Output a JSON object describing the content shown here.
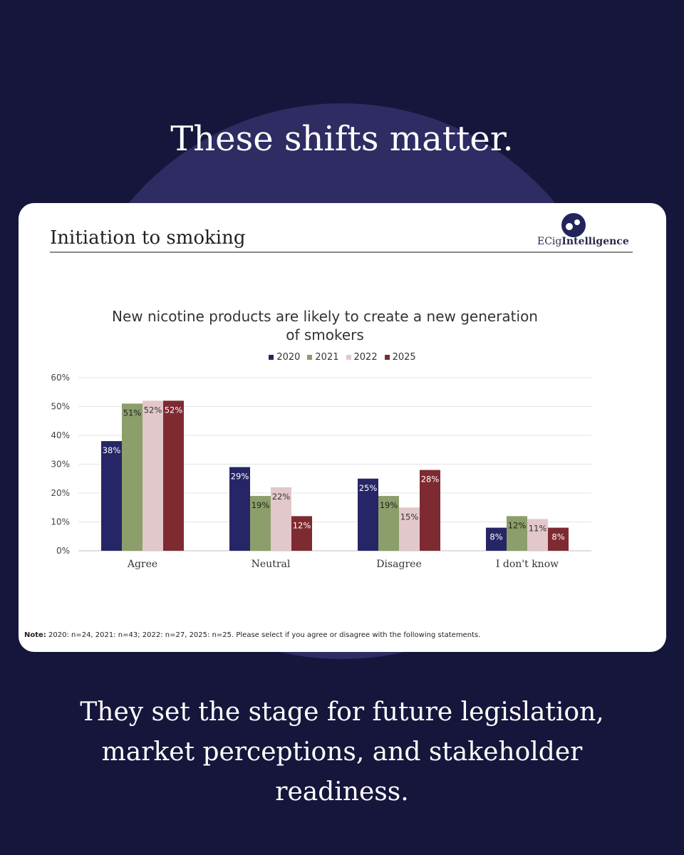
{
  "headline": "These shifts matter.",
  "slide": {
    "title": "Initiation to smoking",
    "logo_text_plain": "ECig",
    "logo_text_bold": "Intelligence"
  },
  "chart_data": {
    "type": "bar",
    "title_line1": "New nicotine products are likely to create a new generation",
    "title_line2": "of smokers",
    "categories": [
      "Agree",
      "Neutral",
      "Disagree",
      "I don't know"
    ],
    "series": [
      {
        "name": "2020",
        "color": "#262666",
        "label_color": "#ffffff",
        "values": [
          38,
          29,
          25,
          8
        ]
      },
      {
        "name": "2021",
        "color": "#8c9e6a",
        "label_color": "#222222",
        "values": [
          51,
          19,
          19,
          12
        ]
      },
      {
        "name": "2022",
        "color": "#e2c8cb",
        "label_color": "#333333",
        "values": [
          52,
          22,
          15,
          11
        ]
      },
      {
        "name": "2025",
        "color": "#7e2a31",
        "label_color": "#ffffff",
        "values": [
          52,
          12,
          28,
          8
        ]
      }
    ],
    "y_ticks": [
      "0%",
      "10%",
      "20%",
      "30%",
      "40%",
      "50%",
      "60%"
    ],
    "ylim": [
      0,
      60
    ],
    "value_suffix": "%",
    "grid": true,
    "legend": "top-center"
  },
  "note": {
    "label": "Note:",
    "text": " 2020: n=24, 2021: n=43; 2022: n=27, 2025: n=25. Please select if you agree or disagree with the following statements."
  },
  "footer": {
    "line1": "They set the stage for future legislation,",
    "line2": "market perceptions, and stakeholder",
    "line3": "readiness."
  },
  "colors": {
    "background": "#16163c",
    "circle": "#2e2c62",
    "card": "#ffffff"
  }
}
